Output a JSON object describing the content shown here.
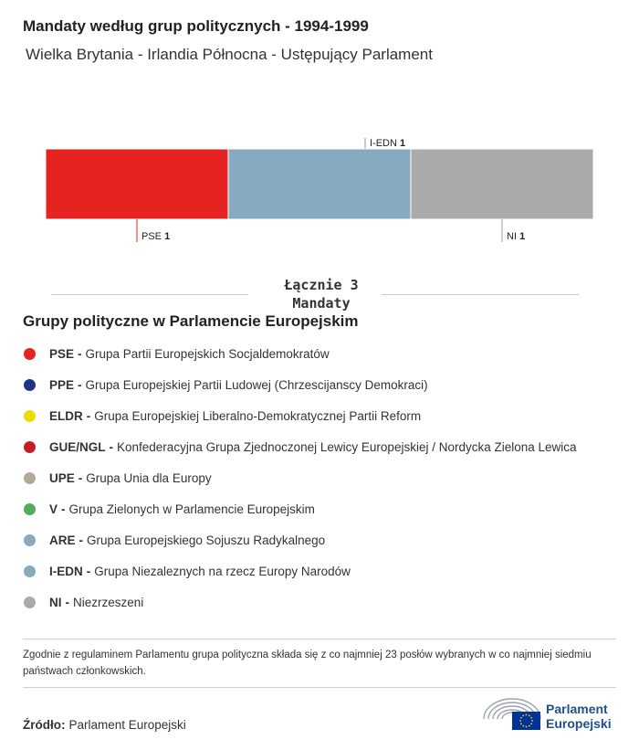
{
  "header": {
    "title": "Mandaty według grup politycznych - 1994-1999",
    "subtitle": "Wielka Brytania - Irlandia Północna - Ustępujący Parlament"
  },
  "chart_data": {
    "type": "bar",
    "stacked": true,
    "orientation": "horizontal",
    "categories": [
      "PSE",
      "I-EDN",
      "NI"
    ],
    "values": [
      1,
      1,
      1
    ],
    "colors": [
      "#e52421",
      "#86aabf",
      "#aaaaa9"
    ],
    "label_positions": [
      "bottom",
      "top",
      "bottom"
    ],
    "total": 3
  },
  "total": {
    "text": "Łącznie 3\nMandaty"
  },
  "legend": {
    "title": "Grupy polityczne w Parlamencie Europejskim",
    "items": [
      {
        "code": "PSE",
        "name": "Grupa Partii Europejskich Socjaldemokratów",
        "color": "#e52421"
      },
      {
        "code": "PPE",
        "name": "Grupa Europejskiej Partii Ludowej (Chrzescijanscy Demokraci)",
        "color": "#213584"
      },
      {
        "code": "ELDR",
        "name": "Grupa Europejskiej Liberalno-Demokratycznej Partii Reform",
        "color": "#eedc00"
      },
      {
        "code": "GUE/NGL",
        "name": "Konfederacyjna Grupa Zjednoczonej Lewicy Europejskiej / Nordycka Zielona Lewica",
        "color": "#c21e25"
      },
      {
        "code": "UPE",
        "name": "Grupa Unia dla Europy",
        "color": "#b2aa98"
      },
      {
        "code": "V",
        "name": "Grupa Zielonych w Parlamencie Europejskim",
        "color": "#53ad5a"
      },
      {
        "code": "ARE",
        "name": "Grupa Europejskiego Sojuszu Radykalnego",
        "color": "#86aabf"
      },
      {
        "code": "I-EDN",
        "name": "Grupa Niezaleznych na rzecz Europy Narodów",
        "color": "#86aabf"
      },
      {
        "code": "NI",
        "name": "Niezrzeszeni",
        "color": "#aaaaa9"
      }
    ]
  },
  "footnote": "Zgodnie z regulaminem Parlamentu grupa polityczna składa się z co najmniej 23 posłów wybranych w co najmniej siedmiu państwach członkowskich.",
  "source": {
    "label": "Źródło:",
    "value": "Parlament Europejski"
  },
  "logo": {
    "text": "Parlament\nEuropejski",
    "color": "#1d4f91",
    "flag_color": "#003399",
    "star_color": "#ffcc00"
  }
}
